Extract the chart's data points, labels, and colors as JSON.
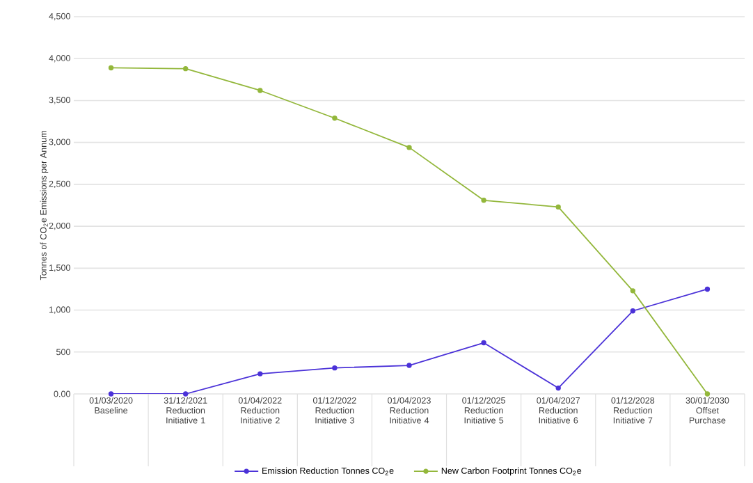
{
  "chart_data": {
    "type": "line",
    "ylabel": "Tonnes of CO$_{2}$e Emissions per Annum",
    "categories": [
      "01/03/2020 Baseline",
      "31/12/2021 Reduction Initiative 1",
      "01/04/2022 Reduction Initiative 2",
      "01/12/2022 Reduction Initiative 3",
      "01/04/2023 Reduction Initiative 4",
      "01/12/2025 Reduction Initiative 5",
      "01/04/2027 Reduction Initiative 6",
      "01/12/2028 Reduction Initiative 7",
      "30/01/2030 Offset Purchase"
    ],
    "series": [
      {
        "name": "Emission Reduction Tonnes CO$_{2}$e",
        "color": "#4b32d8",
        "values": [
          0,
          0,
          240,
          310,
          340,
          610,
          70,
          990,
          1250
        ]
      },
      {
        "name": "New Carbon Footprint Tonnes CO$_{2}$e",
        "color": "#93b73b",
        "values": [
          3890,
          3880,
          3620,
          3290,
          2940,
          2310,
          2230,
          1230,
          0
        ]
      }
    ],
    "ylim": [
      0,
      4500
    ],
    "yticks": [
      {
        "value": 0,
        "label": "0.00"
      },
      500,
      {
        "value": 1000,
        "label": "1,000"
      },
      {
        "value": 1500,
        "label": "1,500"
      },
      {
        "value": 2000,
        "label": "2,000"
      },
      {
        "value": 2500,
        "label": "2,500"
      },
      {
        "value": 3000,
        "label": "3,000"
      },
      {
        "value": 3500,
        "label": "3,500"
      },
      {
        "value": 4000,
        "label": "4,000"
      },
      {
        "value": 4500,
        "label": "4,500"
      }
    ],
    "grid": "y",
    "legend": "bottom",
    "marker": "circle",
    "line_style": "solid"
  }
}
